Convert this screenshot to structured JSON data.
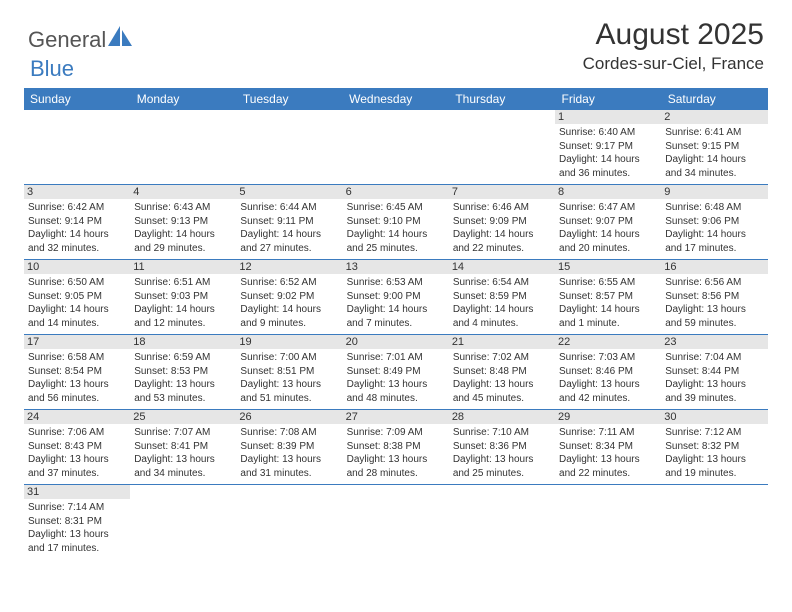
{
  "logo": {
    "general": "General",
    "blue": "Blue"
  },
  "title": "August 2025",
  "location": "Cordes-sur-Ciel, France",
  "colors": {
    "header_bg": "#3b7bbf",
    "header_text": "#ffffff",
    "daynum_bg": "#e6e6e6",
    "border": "#3b7bbf",
    "text": "#333333",
    "logo_gray": "#555555",
    "logo_blue": "#3b7bbf",
    "background": "#ffffff"
  },
  "weekdays": [
    "Sunday",
    "Monday",
    "Tuesday",
    "Wednesday",
    "Thursday",
    "Friday",
    "Saturday"
  ],
  "weeks": [
    [
      {
        "empty": true
      },
      {
        "empty": true
      },
      {
        "empty": true
      },
      {
        "empty": true
      },
      {
        "empty": true
      },
      {
        "day": "1",
        "sunrise": "Sunrise: 6:40 AM",
        "sunset": "Sunset: 9:17 PM",
        "daylight": "Daylight: 14 hours and 36 minutes."
      },
      {
        "day": "2",
        "sunrise": "Sunrise: 6:41 AM",
        "sunset": "Sunset: 9:15 PM",
        "daylight": "Daylight: 14 hours and 34 minutes."
      }
    ],
    [
      {
        "day": "3",
        "sunrise": "Sunrise: 6:42 AM",
        "sunset": "Sunset: 9:14 PM",
        "daylight": "Daylight: 14 hours and 32 minutes."
      },
      {
        "day": "4",
        "sunrise": "Sunrise: 6:43 AM",
        "sunset": "Sunset: 9:13 PM",
        "daylight": "Daylight: 14 hours and 29 minutes."
      },
      {
        "day": "5",
        "sunrise": "Sunrise: 6:44 AM",
        "sunset": "Sunset: 9:11 PM",
        "daylight": "Daylight: 14 hours and 27 minutes."
      },
      {
        "day": "6",
        "sunrise": "Sunrise: 6:45 AM",
        "sunset": "Sunset: 9:10 PM",
        "daylight": "Daylight: 14 hours and 25 minutes."
      },
      {
        "day": "7",
        "sunrise": "Sunrise: 6:46 AM",
        "sunset": "Sunset: 9:09 PM",
        "daylight": "Daylight: 14 hours and 22 minutes."
      },
      {
        "day": "8",
        "sunrise": "Sunrise: 6:47 AM",
        "sunset": "Sunset: 9:07 PM",
        "daylight": "Daylight: 14 hours and 20 minutes."
      },
      {
        "day": "9",
        "sunrise": "Sunrise: 6:48 AM",
        "sunset": "Sunset: 9:06 PM",
        "daylight": "Daylight: 14 hours and 17 minutes."
      }
    ],
    [
      {
        "day": "10",
        "sunrise": "Sunrise: 6:50 AM",
        "sunset": "Sunset: 9:05 PM",
        "daylight": "Daylight: 14 hours and 14 minutes."
      },
      {
        "day": "11",
        "sunrise": "Sunrise: 6:51 AM",
        "sunset": "Sunset: 9:03 PM",
        "daylight": "Daylight: 14 hours and 12 minutes."
      },
      {
        "day": "12",
        "sunrise": "Sunrise: 6:52 AM",
        "sunset": "Sunset: 9:02 PM",
        "daylight": "Daylight: 14 hours and 9 minutes."
      },
      {
        "day": "13",
        "sunrise": "Sunrise: 6:53 AM",
        "sunset": "Sunset: 9:00 PM",
        "daylight": "Daylight: 14 hours and 7 minutes."
      },
      {
        "day": "14",
        "sunrise": "Sunrise: 6:54 AM",
        "sunset": "Sunset: 8:59 PM",
        "daylight": "Daylight: 14 hours and 4 minutes."
      },
      {
        "day": "15",
        "sunrise": "Sunrise: 6:55 AM",
        "sunset": "Sunset: 8:57 PM",
        "daylight": "Daylight: 14 hours and 1 minute."
      },
      {
        "day": "16",
        "sunrise": "Sunrise: 6:56 AM",
        "sunset": "Sunset: 8:56 PM",
        "daylight": "Daylight: 13 hours and 59 minutes."
      }
    ],
    [
      {
        "day": "17",
        "sunrise": "Sunrise: 6:58 AM",
        "sunset": "Sunset: 8:54 PM",
        "daylight": "Daylight: 13 hours and 56 minutes."
      },
      {
        "day": "18",
        "sunrise": "Sunrise: 6:59 AM",
        "sunset": "Sunset: 8:53 PM",
        "daylight": "Daylight: 13 hours and 53 minutes."
      },
      {
        "day": "19",
        "sunrise": "Sunrise: 7:00 AM",
        "sunset": "Sunset: 8:51 PM",
        "daylight": "Daylight: 13 hours and 51 minutes."
      },
      {
        "day": "20",
        "sunrise": "Sunrise: 7:01 AM",
        "sunset": "Sunset: 8:49 PM",
        "daylight": "Daylight: 13 hours and 48 minutes."
      },
      {
        "day": "21",
        "sunrise": "Sunrise: 7:02 AM",
        "sunset": "Sunset: 8:48 PM",
        "daylight": "Daylight: 13 hours and 45 minutes."
      },
      {
        "day": "22",
        "sunrise": "Sunrise: 7:03 AM",
        "sunset": "Sunset: 8:46 PM",
        "daylight": "Daylight: 13 hours and 42 minutes."
      },
      {
        "day": "23",
        "sunrise": "Sunrise: 7:04 AM",
        "sunset": "Sunset: 8:44 PM",
        "daylight": "Daylight: 13 hours and 39 minutes."
      }
    ],
    [
      {
        "day": "24",
        "sunrise": "Sunrise: 7:06 AM",
        "sunset": "Sunset: 8:43 PM",
        "daylight": "Daylight: 13 hours and 37 minutes."
      },
      {
        "day": "25",
        "sunrise": "Sunrise: 7:07 AM",
        "sunset": "Sunset: 8:41 PM",
        "daylight": "Daylight: 13 hours and 34 minutes."
      },
      {
        "day": "26",
        "sunrise": "Sunrise: 7:08 AM",
        "sunset": "Sunset: 8:39 PM",
        "daylight": "Daylight: 13 hours and 31 minutes."
      },
      {
        "day": "27",
        "sunrise": "Sunrise: 7:09 AM",
        "sunset": "Sunset: 8:38 PM",
        "daylight": "Daylight: 13 hours and 28 minutes."
      },
      {
        "day": "28",
        "sunrise": "Sunrise: 7:10 AM",
        "sunset": "Sunset: 8:36 PM",
        "daylight": "Daylight: 13 hours and 25 minutes."
      },
      {
        "day": "29",
        "sunrise": "Sunrise: 7:11 AM",
        "sunset": "Sunset: 8:34 PM",
        "daylight": "Daylight: 13 hours and 22 minutes."
      },
      {
        "day": "30",
        "sunrise": "Sunrise: 7:12 AM",
        "sunset": "Sunset: 8:32 PM",
        "daylight": "Daylight: 13 hours and 19 minutes."
      }
    ],
    [
      {
        "day": "31",
        "sunrise": "Sunrise: 7:14 AM",
        "sunset": "Sunset: 8:31 PM",
        "daylight": "Daylight: 13 hours and 17 minutes."
      },
      {
        "empty": true
      },
      {
        "empty": true
      },
      {
        "empty": true
      },
      {
        "empty": true
      },
      {
        "empty": true
      },
      {
        "empty": true
      }
    ]
  ]
}
